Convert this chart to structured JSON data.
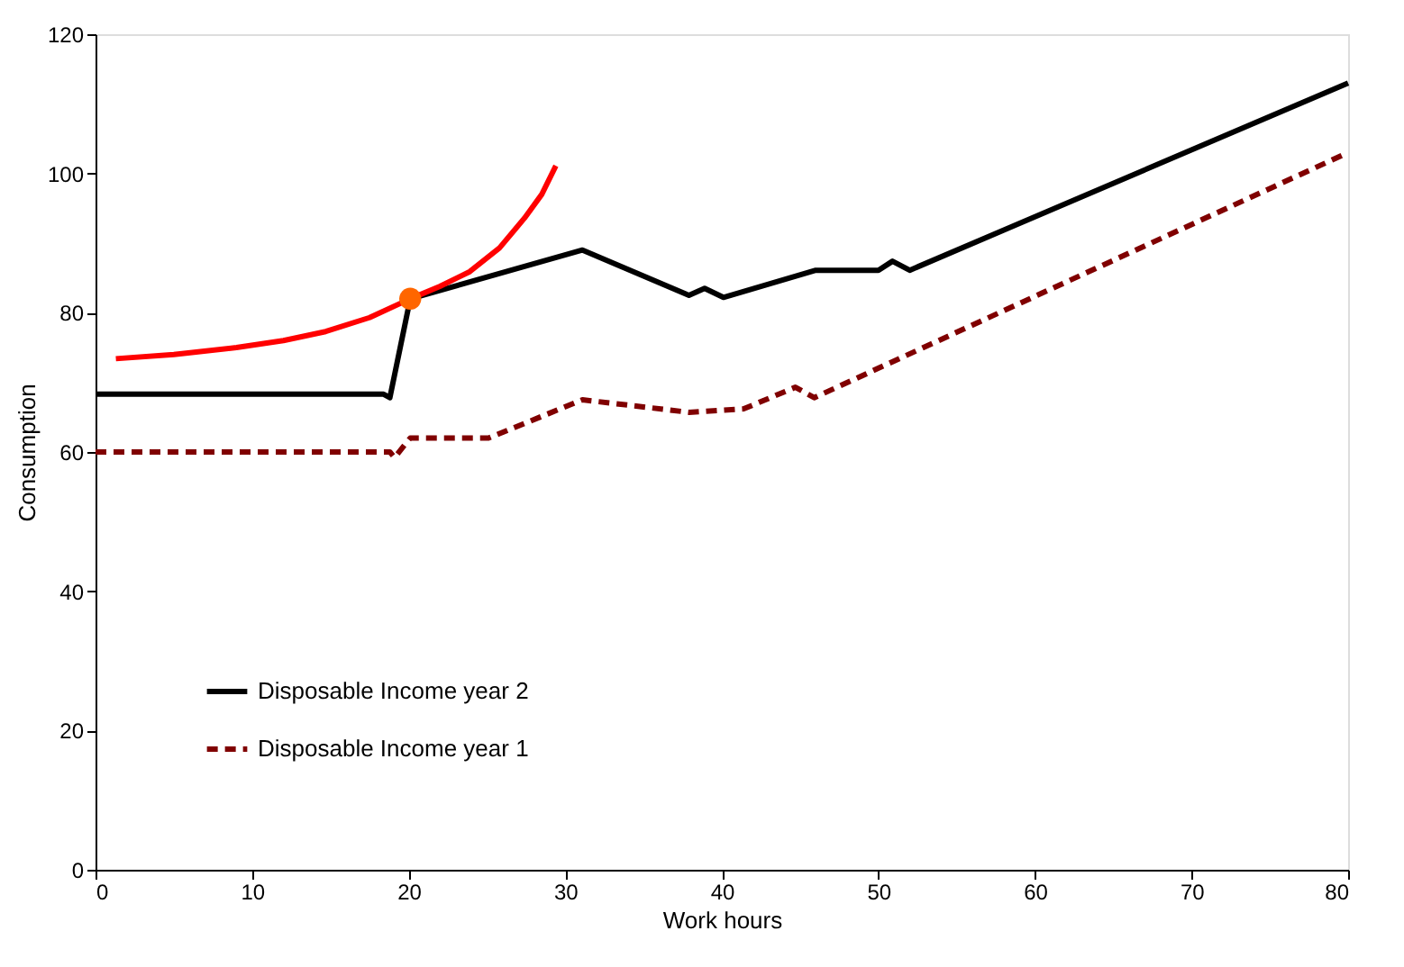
{
  "chart_data": {
    "type": "line",
    "xlabel": "Work hours",
    "ylabel": "Consumption",
    "xlim": [
      0,
      80
    ],
    "ylim": [
      0,
      120
    ],
    "xticks": [
      0,
      10,
      20,
      30,
      40,
      50,
      60,
      70,
      80
    ],
    "yticks": [
      0,
      20,
      40,
      60,
      80,
      100,
      120
    ],
    "grid": false,
    "legend": "bottom left",
    "series": [
      {
        "name": "Disposable Income year 2",
        "color": "#000000",
        "line_style": "solid",
        "x": [
          0,
          18.4,
          18.8,
          20.1,
          31.1,
          37.9,
          38.9,
          40.1,
          46,
          50,
          50.9,
          52,
          80
        ],
        "values": [
          68.3,
          68.3,
          67.8,
          82,
          89,
          82.5,
          83.5,
          82.2,
          86.1,
          86.1,
          87.4,
          86.1,
          113
        ]
      },
      {
        "name": "Disposable Income year 1",
        "color": "#800000",
        "line_style": "dashed",
        "x": [
          0,
          18.8,
          19.1,
          20.1,
          25.1,
          31.1,
          37.9,
          41.4,
          44.7,
          45.9,
          80
        ],
        "values": [
          60,
          60,
          59.2,
          62,
          62,
          67.5,
          65.7,
          66.2,
          69.3,
          67.8,
          103
        ]
      },
      {
        "color": "#ff0000",
        "line_style": "solid",
        "x": [
          1.3,
          5,
          9,
          12,
          14.7,
          17.5,
          20.1,
          22,
          23.9,
          25.8,
          27.4,
          28.5,
          29.4
        ],
        "values": [
          73.4,
          74,
          75,
          76,
          77.3,
          79.3,
          82,
          83.8,
          85.9,
          89.3,
          93.6,
          97,
          101.1
        ]
      },
      {
        "type": "scatter",
        "marker": "circle",
        "color": "#ff6600",
        "x": [
          20.1
        ],
        "values": [
          82
        ]
      }
    ]
  }
}
